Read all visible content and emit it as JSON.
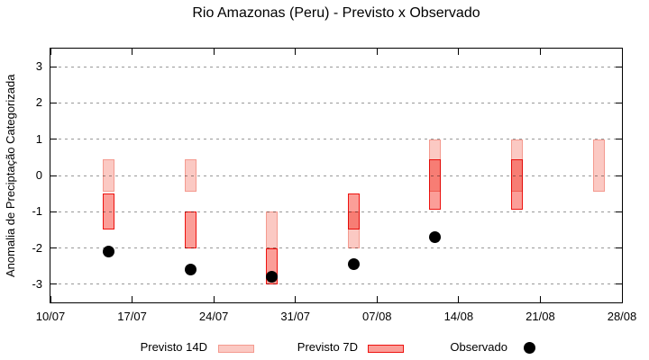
{
  "title": "Rio Amazonas (Peru) - Previsto x Observado",
  "axes": {
    "y_label": "Anomalia de Preciptação Categorizada",
    "y_ticks": [
      3,
      2,
      1,
      0,
      -1,
      -2,
      -3
    ],
    "y_range": [
      -3.5,
      3.5
    ],
    "x_tick_labels": [
      "10/07",
      "17/07",
      "24/07",
      "31/07",
      "07/08",
      "14/08",
      "21/08",
      "28/08"
    ],
    "x_tick_days": [
      0,
      7,
      14,
      21,
      28,
      35,
      42,
      49
    ],
    "x_span_days": 49,
    "grid": "dotted horizontal at integer y values"
  },
  "legend": {
    "previsto_14d_label": "Previsto 14D",
    "previsto_7d_label": "Previsto 7D",
    "observado_label": "Observado"
  },
  "colors": {
    "previsto_14d_fill": "#fbc9c3",
    "previsto_14d_border": "#f49a8f",
    "previsto_7d_fill": "#fb9e98",
    "previsto_7d_border": "#ed1310",
    "overlap_fill": "#f5736c",
    "observado_dot": "#000000",
    "gridline": "#999999",
    "axis": "#000000"
  },
  "chart_data": {
    "type": "bar",
    "subtype": "ranged forecast bars (hi/lo) with observed scatter dots",
    "title": "Rio Amazonas (Peru) - Previsto x Observado",
    "xlabel": "",
    "ylabel": "Anomalia de Preciptação Categorizada",
    "ylim": [
      -3.5,
      3.5
    ],
    "legend_position": "bottom",
    "groups": [
      {
        "date": "15/07",
        "day": 5,
        "previsto_14d": [
          0.45,
          -0.45
        ],
        "previsto_7d": [
          -0.5,
          -1.5
        ],
        "observado": -2.1
      },
      {
        "date": "22/07",
        "day": 12,
        "previsto_14d": [
          0.45,
          -0.45
        ],
        "previsto_7d": [
          -1.0,
          -2.0
        ],
        "observado": -2.6
      },
      {
        "date": "29/07",
        "day": 19,
        "previsto_14d": [
          -1.0,
          -2.0
        ],
        "previsto_7d": [
          -2.0,
          -3.0
        ],
        "observado": -2.8
      },
      {
        "date": "05/08",
        "day": 26,
        "previsto_14d": [
          -1.0,
          -2.0
        ],
        "previsto_7d": [
          -0.5,
          -1.5
        ],
        "observado": -2.45
      },
      {
        "date": "12/08",
        "day": 33,
        "previsto_14d": [
          1.0,
          -0.45
        ],
        "previsto_7d": [
          0.45,
          -0.95
        ],
        "observado": -1.7
      },
      {
        "date": "19/08",
        "day": 40,
        "previsto_14d": [
          1.0,
          -0.45
        ],
        "previsto_7d": [
          0.45,
          -0.95
        ],
        "observado": null
      },
      {
        "date": "26/08",
        "day": 47,
        "previsto_14d": [
          1.0,
          -0.45
        ],
        "previsto_7d": null,
        "observado": null
      }
    ]
  }
}
